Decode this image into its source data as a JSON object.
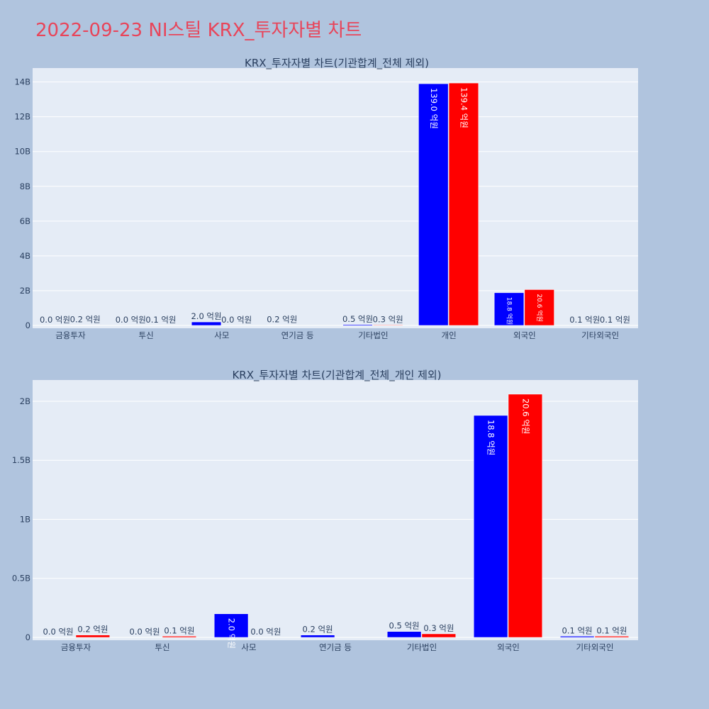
{
  "title": "2022-09-23 NI스틸 KRX_투자자별 차트",
  "colors": {
    "buy": "#0000ff",
    "sell": "#ff0000",
    "plot_bg": "#e5ecf6",
    "page_bg": "#b0c4de",
    "title": "#e8455a"
  },
  "chart_data": [
    {
      "type": "bar",
      "title": "KRX_투자자별 차트(기관합계_전체 제외)",
      "categories": [
        "금융투자",
        "투신",
        "사모",
        "연기금 등",
        "기타법인",
        "개인",
        "외국인",
        "기타외국인"
      ],
      "series": [
        {
          "values": [
            0.0,
            0.0,
            0.2,
            0.02,
            0.05,
            13.9,
            1.88,
            0.01
          ]
        },
        {
          "values": [
            0.02,
            0.01,
            0.0,
            0.0,
            0.03,
            13.94,
            2.06,
            0.01
          ]
        }
      ],
      "data_labels": [
        [
          "0.0 억원",
          "0.0 억원",
          "2.0 억원",
          "0.2 억원",
          "0.5 억원",
          "139.0 억원",
          "18.8 억원",
          "0.1 억원"
        ],
        [
          "0.2 억원",
          "0.1 억원",
          "0.0 억원",
          "",
          "0.3 억원",
          "139.4 억원",
          "20.6 억원",
          "0.1 억원"
        ]
      ],
      "ylim": [
        0,
        14.8
      ],
      "yticks": [
        0,
        2,
        4,
        6,
        8,
        10,
        12,
        14
      ],
      "ytick_labels": [
        "0",
        "2B",
        "4B",
        "6B",
        "8B",
        "10B",
        "12B",
        "14B"
      ],
      "grid": true,
      "legend": "none"
    },
    {
      "type": "bar",
      "title": "KRX_투자자별 차트(기관합계_전체_개인 제외)",
      "categories": [
        "금융투자",
        "투신",
        "사모",
        "연기금 등",
        "기타법인",
        "외국인",
        "기타외국인"
      ],
      "series": [
        {
          "values": [
            0.0,
            0.0,
            0.2,
            0.02,
            0.05,
            1.88,
            0.01
          ]
        },
        {
          "values": [
            0.02,
            0.01,
            0.0,
            0.0,
            0.03,
            2.06,
            0.01
          ]
        }
      ],
      "data_labels": [
        [
          "0.0 억원",
          "0.0 억원",
          "2.0 억원",
          "0.2 억원",
          "0.5 억원",
          "18.8 억원",
          "0.1 억원"
        ],
        [
          "0.2 억원",
          "0.1 억원",
          "0.0 억원",
          "",
          "0.3 억원",
          "20.6 억원",
          "0.1 억원"
        ]
      ],
      "ylim": [
        0,
        2.18
      ],
      "yticks": [
        0,
        0.5,
        1,
        1.5,
        2
      ],
      "ytick_labels": [
        "0",
        "0.5B",
        "1B",
        "1.5B",
        "2B"
      ],
      "grid": true,
      "legend": "none"
    }
  ]
}
